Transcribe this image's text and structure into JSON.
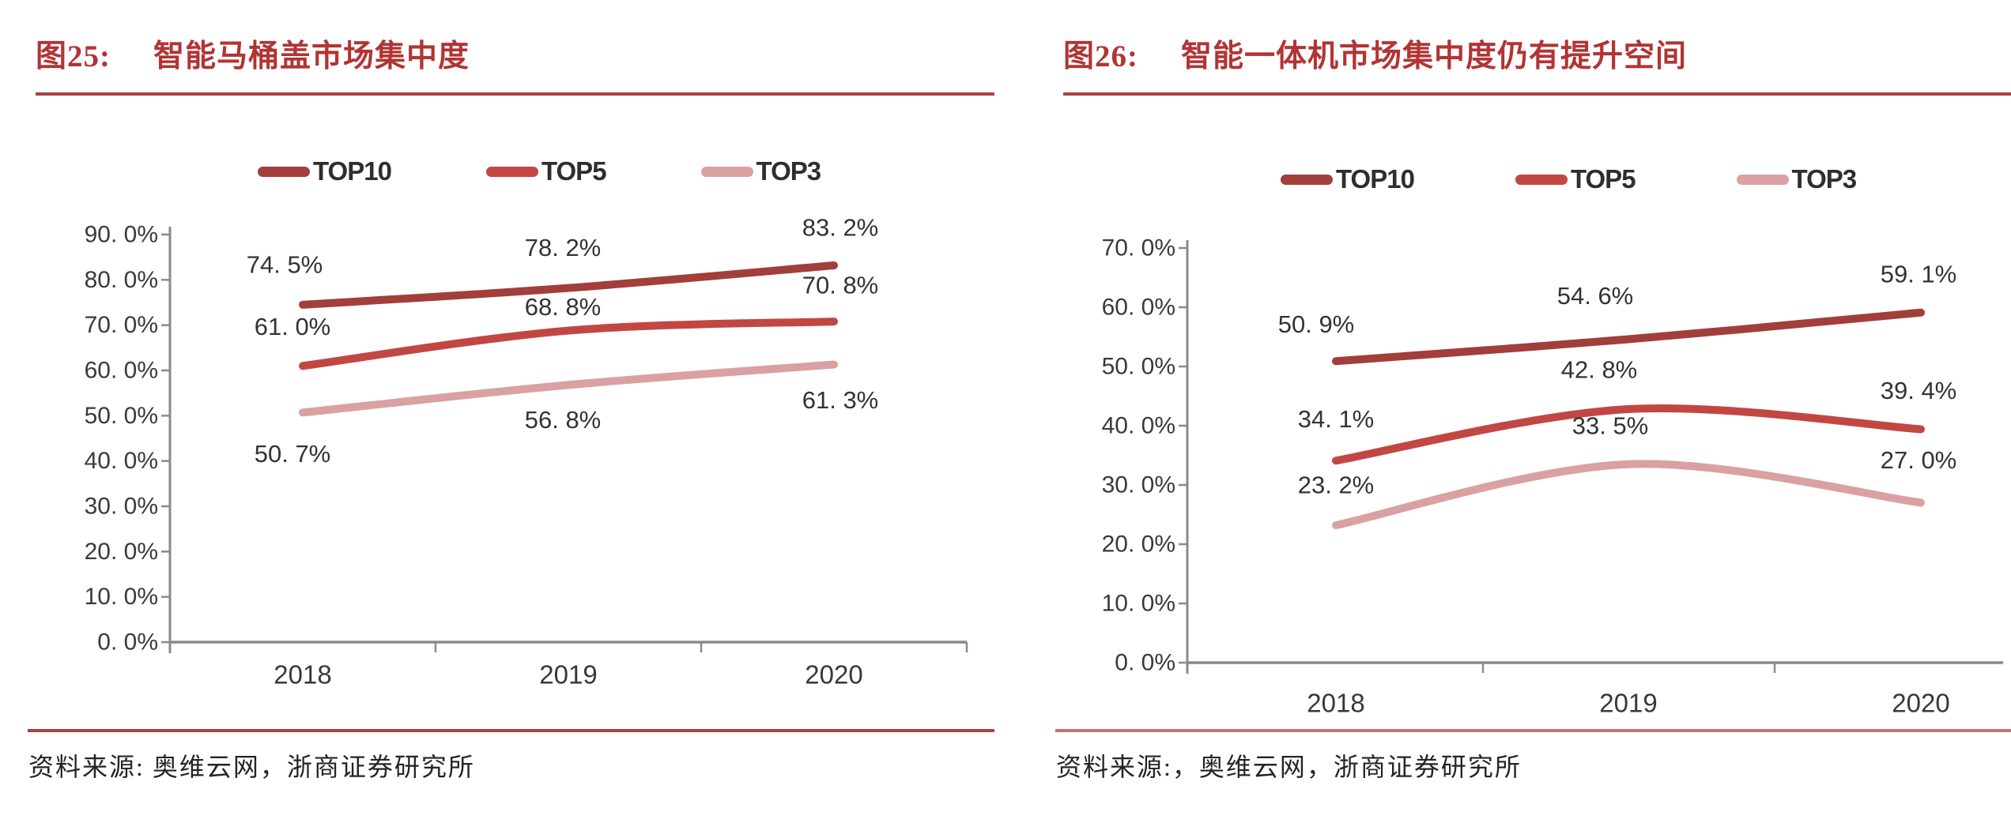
{
  "styles": {
    "title_color": "#B23434",
    "title_rule_color": "#A64444",
    "bottom_rule_left_color": "#A64444",
    "bottom_rule_right_color": "#C9706E",
    "axis_color": "#8A8A8A",
    "tick_label_color": "#3A3A3A",
    "data_label_color": "#333333",
    "top10_color": "#A23E3C",
    "top5_color": "#C24743",
    "top3_color": "#D9A1A1"
  },
  "chart_data": [
    {
      "type": "line",
      "figure_label": "图25:",
      "title": "智能马桶盖市场集中度",
      "categories": [
        "2018",
        "2019",
        "2020"
      ],
      "series": [
        {
          "name": "TOP10",
          "color": "#A23E3C",
          "values": [
            74.5,
            78.2,
            83.2
          ],
          "labels": [
            "74. 5%",
            "78. 2%",
            "83. 2%"
          ],
          "label_offsets": [
            [
              -23,
              -51
            ],
            [
              -7,
              -51
            ],
            [
              8,
              -48
            ]
          ]
        },
        {
          "name": "TOP5",
          "color": "#C24743",
          "values": [
            61.0,
            68.8,
            70.8
          ],
          "labels": [
            "61. 0%",
            "68. 8%",
            "70. 8%"
          ],
          "label_offsets": [
            [
              -13,
              -50
            ],
            [
              -7,
              -30
            ],
            [
              8,
              -46
            ]
          ]
        },
        {
          "name": "TOP3",
          "color": "#D9A1A1",
          "values": [
            50.7,
            56.8,
            61.3
          ],
          "labels": [
            "50. 7%",
            "56. 8%",
            "61. 3%"
          ],
          "label_offsets": [
            [
              -13,
              52
            ],
            [
              -7,
              44
            ],
            [
              8,
              45
            ]
          ]
        }
      ],
      "ylim": [
        0,
        90
      ],
      "ytick_step": 10,
      "ytick_labels": [
        "0. 0%",
        "10. 0%",
        "20. 0%",
        "30. 0%",
        "40. 0%",
        "50. 0%",
        "60. 0%",
        "70. 0%",
        "80. 0%",
        "90. 0%"
      ],
      "xlabel": "",
      "ylabel": "",
      "grid": false,
      "legend_position": "top",
      "source": "资料来源: 奥维云网，浙商证券研究所"
    },
    {
      "type": "line",
      "figure_label": "图26:",
      "title": "智能一体机市场集中度仍有提升空间",
      "categories": [
        "2018",
        "2019",
        "2020"
      ],
      "series": [
        {
          "name": "TOP10",
          "color": "#A23E3C",
          "values": [
            50.9,
            54.6,
            59.1
          ],
          "labels": [
            "50. 9%",
            "54. 6%",
            "59. 1%"
          ],
          "label_offsets": [
            [
              -25,
              -47
            ],
            [
              -42,
              -55
            ],
            [
              -3,
              -49
            ]
          ]
        },
        {
          "name": "TOP5",
          "color": "#C24743",
          "values": [
            34.1,
            42.8,
            39.4
          ],
          "labels": [
            "34. 1%",
            "42. 8%",
            "39. 4%"
          ],
          "label_offsets": [
            [
              0,
              -53
            ],
            [
              -37,
              -50
            ],
            [
              -3,
              -49
            ]
          ]
        },
        {
          "name": "TOP3",
          "color": "#D9A1A1",
          "values": [
            23.2,
            33.5,
            27.0
          ],
          "labels": [
            "23. 2%",
            "33. 5%",
            "27. 0%"
          ],
          "label_offsets": [
            [
              0,
              -51
            ],
            [
              -23,
              -49
            ],
            [
              -3,
              -54
            ]
          ]
        }
      ],
      "ylim": [
        0,
        70
      ],
      "ytick_step": 10,
      "ytick_labels": [
        "0. 0%",
        "10. 0%",
        "20. 0%",
        "30. 0%",
        "40. 0%",
        "50. 0%",
        "60. 0%",
        "70. 0%"
      ],
      "xlabel": "",
      "ylabel": "",
      "grid": false,
      "legend_position": "top",
      "source": "资料来源:，奥维云网，浙商证券研究所"
    }
  ]
}
